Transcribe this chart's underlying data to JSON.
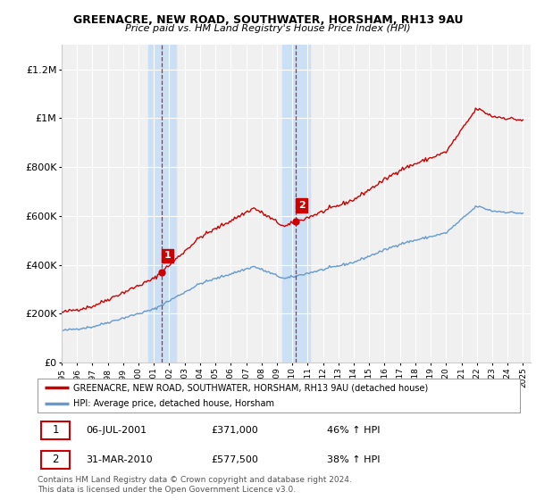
{
  "title": "GREENACRE, NEW ROAD, SOUTHWATER, HORSHAM, RH13 9AU",
  "subtitle": "Price paid vs. HM Land Registry's House Price Index (HPI)",
  "ylabel_ticks": [
    0,
    200000,
    400000,
    600000,
    800000,
    1000000,
    1200000
  ],
  "ylabel_labels": [
    "£0",
    "£200K",
    "£400K",
    "£600K",
    "£800K",
    "£1M",
    "£1.2M"
  ],
  "ylim": [
    0,
    1300000
  ],
  "xlim_start": 1995.0,
  "xlim_end": 2025.5,
  "sale1_x": 2001.51,
  "sale1_y": 371000,
  "sale2_x": 2010.24,
  "sale2_y": 577500,
  "shade_color": "#cce0f5",
  "red_color": "#cc0000",
  "blue_color": "#6699cc",
  "legend_label_red": "GREENACRE, NEW ROAD, SOUTHWATER, HORSHAM, RH13 9AU (detached house)",
  "legend_label_blue": "HPI: Average price, detached house, Horsham",
  "annot1_label": "1",
  "annot1_date": "06-JUL-2001",
  "annot1_price": "£371,000",
  "annot1_pct": "46% ↑ HPI",
  "annot2_label": "2",
  "annot2_date": "31-MAR-2010",
  "annot2_price": "£577,500",
  "annot2_pct": "38% ↑ HPI",
  "footer": "Contains HM Land Registry data © Crown copyright and database right 2024.\nThis data is licensed under the Open Government Licence v3.0.",
  "background_color": "#ffffff",
  "plot_bg_color": "#f0f0f0"
}
